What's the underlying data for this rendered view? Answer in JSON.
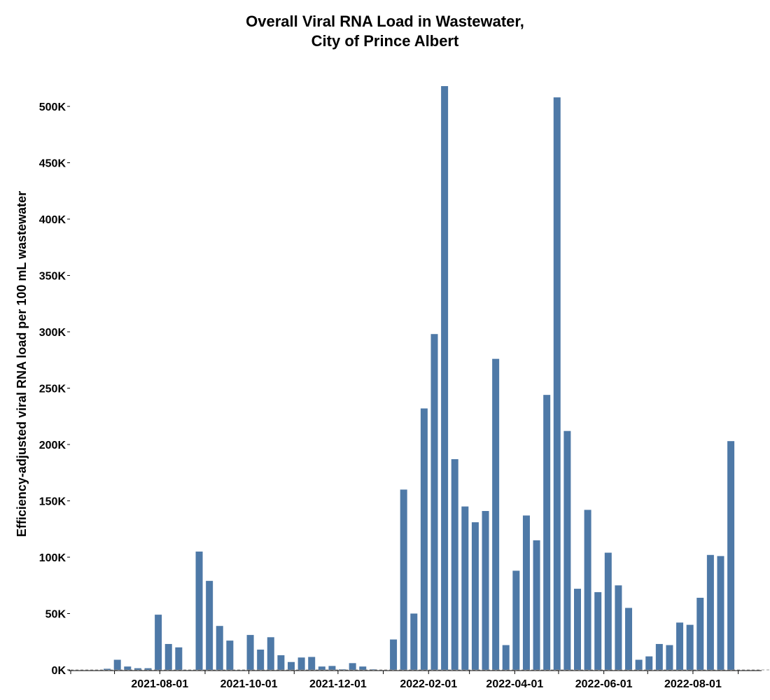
{
  "chart_data": {
    "type": "bar",
    "title": [
      "Overall Viral RNA Load in Wastewater,",
      "City of Prince Albert"
    ],
    "xlabel": "",
    "ylabel": "Efficiency-adjusted viral RNA load per 100 mL wastewater",
    "ylim": [
      0,
      520000
    ],
    "xlim": [
      "2021-06-01",
      "2022-09-17"
    ],
    "y_ticks": [
      {
        "value": 0,
        "label": "0K"
      },
      {
        "value": 50000,
        "label": "50K"
      },
      {
        "value": 100000,
        "label": "100K"
      },
      {
        "value": 150000,
        "label": "150K"
      },
      {
        "value": 200000,
        "label": "200K"
      },
      {
        "value": 250000,
        "label": "250K"
      },
      {
        "value": 300000,
        "label": "300K"
      },
      {
        "value": 350000,
        "label": "350K"
      },
      {
        "value": 400000,
        "label": "400K"
      },
      {
        "value": 450000,
        "label": "450K"
      },
      {
        "value": 500000,
        "label": "500K"
      }
    ],
    "x_ticks": [
      "2021-06-01",
      "2021-07-01",
      "2021-08-01",
      "2021-09-01",
      "2021-10-01",
      "2021-11-01",
      "2021-12-01",
      "2022-01-01",
      "2022-02-01",
      "2022-03-01",
      "2022-04-01",
      "2022-05-01",
      "2022-06-01",
      "2022-07-01",
      "2022-08-01",
      "2022-09-01"
    ],
    "x_tick_labels": [
      "2021-08-01",
      "2021-10-01",
      "2021-12-01",
      "2022-02-01",
      "2022-04-01",
      "2022-06-01",
      "2022-08-01"
    ],
    "grid": false,
    "bar_color": "#4e79a7",
    "x": [
      "2021-06-25",
      "2021-07-02",
      "2021-07-09",
      "2021-07-16",
      "2021-07-23",
      "2021-07-30",
      "2021-08-06",
      "2021-08-13",
      "2021-08-27",
      "2021-09-03",
      "2021-09-10",
      "2021-09-17",
      "2021-10-01",
      "2021-10-08",
      "2021-10-15",
      "2021-10-22",
      "2021-10-29",
      "2021-11-05",
      "2021-11-12",
      "2021-11-19",
      "2021-11-26",
      "2021-12-03",
      "2021-12-10",
      "2021-12-17",
      "2021-12-24",
      "2022-01-07",
      "2022-01-14",
      "2022-01-21",
      "2022-01-28",
      "2022-02-04",
      "2022-02-11",
      "2022-02-18",
      "2022-02-25",
      "2022-03-04",
      "2022-03-11",
      "2022-03-18",
      "2022-03-25",
      "2022-04-01",
      "2022-04-08",
      "2022-04-15",
      "2022-04-22",
      "2022-04-29",
      "2022-05-06",
      "2022-05-13",
      "2022-05-20",
      "2022-05-27",
      "2022-06-03",
      "2022-06-10",
      "2022-06-17",
      "2022-06-24",
      "2022-07-01",
      "2022-07-08",
      "2022-07-15",
      "2022-07-22",
      "2022-07-29",
      "2022-08-05",
      "2022-08-12",
      "2022-08-19",
      "2022-08-26"
    ],
    "values": [
      1000,
      9000,
      3000,
      1500,
      1500,
      49000,
      23000,
      20000,
      105000,
      79000,
      39000,
      26000,
      31000,
      18000,
      29000,
      13000,
      7000,
      11000,
      11500,
      3000,
      3500,
      500,
      6000,
      3000,
      500,
      27000,
      160000,
      50000,
      232000,
      298000,
      518000,
      187000,
      145000,
      131000,
      141000,
      276000,
      22000,
      88000,
      137000,
      115000,
      244000,
      508000,
      212000,
      72000,
      142000,
      69000,
      104000,
      75000,
      55000,
      9000,
      12000,
      23000,
      22000,
      42000,
      40000,
      64000,
      102000,
      101000,
      203000
    ]
  }
}
